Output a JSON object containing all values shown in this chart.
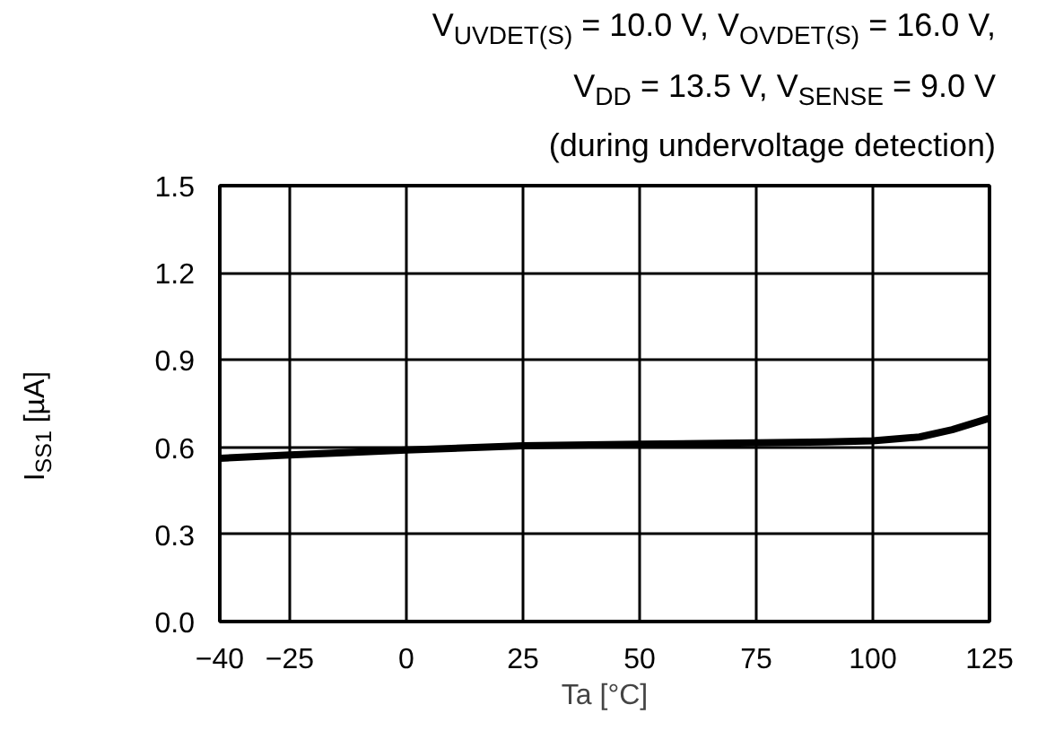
{
  "chart_data": {
    "type": "line",
    "title": "V$_{UVDET(S)}$ = 10.0 V, V$_{OVDET(S)}$ = 16.0 V,\nV$_{DD}$ = 13.5 V, V$_{SENSE}$ = 9.0 V\n(during undervoltage detection)",
    "xlabel": "Ta [°C]",
    "ylabel": "I$_{SS1}$ [µA]",
    "x": [
      -40,
      -25,
      0,
      25,
      50,
      75,
      90,
      100,
      110,
      117,
      125
    ],
    "series": [
      {
        "color": "#000000",
        "values": [
          0.562,
          0.573,
          0.59,
          0.605,
          0.61,
          0.615,
          0.618,
          0.622,
          0.635,
          0.66,
          0.7
        ]
      }
    ],
    "xlim": [
      -40,
      125
    ],
    "ylim": [
      0,
      1.5
    ],
    "xticks": [
      -40,
      -25,
      0,
      25,
      50,
      75,
      100,
      125
    ],
    "yticks": [
      {
        "value": 0,
        "label": "0.0"
      },
      0.3,
      0.6,
      0.9,
      1.2,
      1.5
    ],
    "grid": true,
    "line_style": "solid",
    "marker": "none"
  }
}
